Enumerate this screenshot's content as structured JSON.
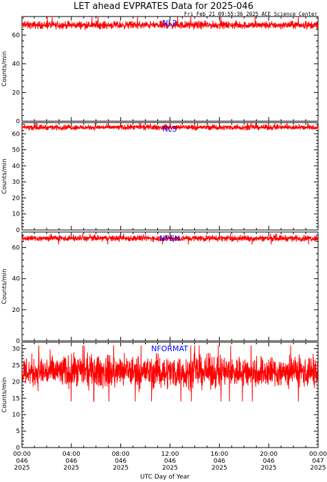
{
  "title": "LET ahead EVPRATES Data for 2025-046",
  "timestamp": "Fri Feb 21 09:55:36 2025 ACE Science Center",
  "chart_data": {
    "type": "line",
    "xlabel": "UTC Day of Year",
    "x_ticks": [
      {
        "time": "00:00",
        "doy": "046",
        "year": "2025"
      },
      {
        "time": "04:00",
        "doy": "046",
        "year": "2025"
      },
      {
        "time": "08:00",
        "doy": "046",
        "year": "2025"
      },
      {
        "time": "12:00",
        "doy": "046",
        "year": "2025"
      },
      {
        "time": "16:00",
        "doy": "046",
        "year": "2025"
      },
      {
        "time": "20:00",
        "doy": "046",
        "year": "2025"
      },
      {
        "time": "00:00",
        "doy": "047",
        "year": "2025"
      }
    ],
    "xlim_hours": [
      0,
      24
    ],
    "panels": [
      {
        "label": "NL2",
        "ylabel": "Counts/min",
        "ylim": [
          0,
          73
        ],
        "yticks": [
          0,
          20,
          40,
          60
        ],
        "mean": 67,
        "spread": 1.6,
        "spikes": [
          70,
          73
        ]
      },
      {
        "label": "NL3",
        "ylabel": "Counts/min",
        "ylim": [
          0,
          67
        ],
        "yticks": [
          0,
          10,
          20,
          30,
          40,
          50,
          60
        ],
        "mean": 64,
        "spread": 1.0,
        "spikes": [
          66,
          67
        ]
      },
      {
        "label": "NPEN",
        "ylabel": "Counts/min",
        "ylim": [
          0,
          70
        ],
        "yticks": [
          0,
          20,
          40,
          60
        ],
        "mean": 66,
        "spread": 1.2,
        "spikes": [
          62,
          69
        ]
      },
      {
        "label": "NFORMAT",
        "ylabel": "Counts/min",
        "ylim": [
          0,
          32
        ],
        "yticks": [
          0,
          5,
          10,
          15,
          20,
          25,
          30
        ],
        "mean": 23,
        "spread": 3.0,
        "spikes": [
          14,
          31
        ]
      }
    ],
    "line_color": "#ff0000",
    "label_color": "#0000ff",
    "grid": false
  }
}
